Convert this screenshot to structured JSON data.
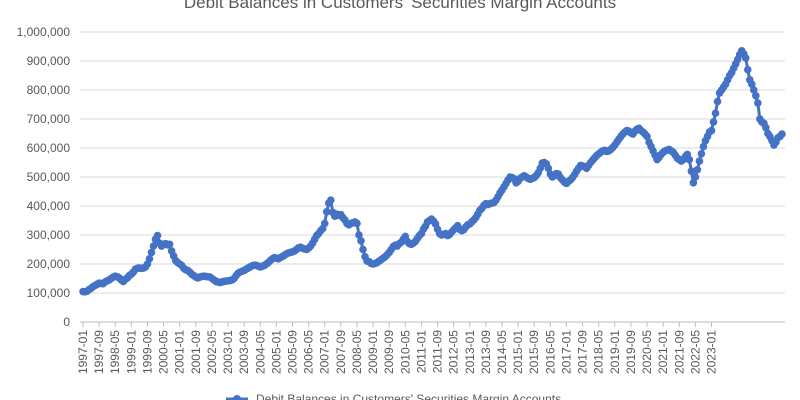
{
  "chart_data": {
    "type": "line",
    "title": "Debit Balances in Customers' Securities Margin Accounts",
    "xlabel": "",
    "ylabel": "",
    "ylim": [
      0,
      1000000
    ],
    "y_ticks": [
      0,
      100000,
      200000,
      300000,
      400000,
      500000,
      600000,
      700000,
      800000,
      900000,
      1000000
    ],
    "y_tick_labels": [
      "0",
      "100,000",
      "200,000",
      "300,000",
      "400,000",
      "500,000",
      "600,000",
      "700,000",
      "800,000",
      "900,000",
      "1,000,000"
    ],
    "x_tick_labels": [
      "1997-01",
      "1997-09",
      "1998-05",
      "1999-01",
      "1999-09",
      "2000-05",
      "2001-01",
      "2001-09",
      "2002-05",
      "2003-01",
      "2003-09",
      "2004-05",
      "2005-01",
      "2005-09",
      "2006-05",
      "2007-01",
      "2007-09",
      "2008-05",
      "2009-01",
      "2009-09",
      "2010-05",
      "2011-01",
      "2011-09",
      "2012-05",
      "2013-01",
      "2013-09",
      "2014-05",
      "2015-01",
      "2015-09",
      "2016-05",
      "2017-01",
      "2017-09",
      "2018-05",
      "2019-01",
      "2019-09",
      "2020-05",
      "2021-01",
      "2021-09",
      "2022-05",
      "2023-01"
    ],
    "grid": "horizontal",
    "legend_position": "bottom",
    "colors": {
      "series": "#4472C4",
      "grid": "#D9D9D9",
      "axis": "#BFBFBF",
      "text": "#595959"
    },
    "series": [
      {
        "name": "Debit Balances in Customers' Securities Margin Accounts",
        "start": "1997-01",
        "frequency": "monthly",
        "values": [
          105000,
          104000,
          106000,
          112000,
          116000,
          122000,
          126000,
          130000,
          134000,
          133000,
          132000,
          138000,
          142000,
          145000,
          150000,
          155000,
          158000,
          156000,
          152000,
          145000,
          140000,
          147000,
          152000,
          160000,
          165000,
          172000,
          182000,
          185000,
          186000,
          185000,
          186000,
          190000,
          200000,
          218000,
          240000,
          262000,
          285000,
          298000,
          272000,
          262000,
          268000,
          270000,
          266000,
          268000,
          245000,
          228000,
          212000,
          205000,
          200000,
          195000,
          185000,
          180000,
          178000,
          172000,
          165000,
          160000,
          155000,
          152000,
          155000,
          157000,
          158000,
          157000,
          156000,
          155000,
          150000,
          145000,
          140000,
          138000,
          136000,
          138000,
          140000,
          141000,
          142000,
          143000,
          145000,
          150000,
          160000,
          168000,
          172000,
          175000,
          178000,
          182000,
          186000,
          190000,
          194000,
          196000,
          195000,
          193000,
          190000,
          192000,
          195000,
          200000,
          205000,
          212000,
          218000,
          222000,
          220000,
          218000,
          222000,
          226000,
          230000,
          235000,
          238000,
          240000,
          242000,
          245000,
          250000,
          256000,
          258000,
          254000,
          252000,
          250000,
          255000,
          262000,
          272000,
          285000,
          298000,
          305000,
          315000,
          322000,
          340000,
          380000,
          410000,
          420000,
          378000,
          365000,
          372000,
          368000,
          370000,
          360000,
          352000,
          340000,
          335000,
          340000,
          342000,
          345000,
          340000,
          300000,
          280000,
          250000,
          225000,
          210000,
          208000,
          202000,
          200000,
          202000,
          205000,
          210000,
          215000,
          220000,
          225000,
          232000,
          240000,
          250000,
          260000,
          265000,
          262000,
          270000,
          275000,
          285000,
          295000,
          278000,
          270000,
          268000,
          272000,
          278000,
          288000,
          298000,
          305000,
          320000,
          330000,
          345000,
          350000,
          355000,
          348000,
          338000,
          320000,
          305000,
          300000,
          302000,
          305000,
          298000,
          302000,
          310000,
          318000,
          325000,
          332000,
          320000,
          315000,
          318000,
          328000,
          335000,
          338000,
          345000,
          352000,
          360000,
          372000,
          385000,
          392000,
          402000,
          408000,
          405000,
          408000,
          410000,
          412000,
          420000,
          432000,
          445000,
          455000,
          466000,
          478000,
          490000,
          500000,
          498000,
          494000,
          480000,
          485000,
          495000,
          500000,
          504000,
          500000,
          495000,
          492000,
          495000,
          498000,
          505000,
          515000,
          530000,
          548000,
          550000,
          545000,
          530000,
          510000,
          500000,
          505000,
          512000,
          510000,
          498000,
          490000,
          482000,
          478000,
          485000,
          490000,
          498000,
          508000,
          520000,
          530000,
          540000,
          538000,
          535000,
          530000,
          540000,
          550000,
          558000,
          566000,
          574000,
          580000,
          585000,
          590000,
          592000,
          588000,
          590000,
          595000,
          602000,
          610000,
          620000,
          630000,
          640000,
          648000,
          655000,
          660000,
          658000,
          652000,
          648000,
          658000,
          665000,
          668000,
          660000,
          655000,
          648000,
          640000,
          620000,
          605000,
          590000,
          575000,
          560000,
          568000,
          578000,
          585000,
          590000,
          593000,
          595000,
          590000,
          585000,
          575000,
          565000,
          560000,
          555000,
          560000,
          570000,
          578000,
          560000,
          520000,
          480000,
          500000,
          525000,
          555000,
          580000,
          605000,
          625000,
          640000,
          655000,
          660000,
          690000,
          720000,
          760000,
          790000,
          800000,
          810000,
          820000,
          835000,
          850000,
          860000,
          875000,
          890000,
          905000,
          922000,
          935000,
          925000,
          910000,
          870000,
          835000,
          820000,
          800000,
          780000,
          755000,
          700000,
          690000,
          685000,
          670000,
          650000,
          640000,
          625000,
          610000,
          620000,
          635000,
          640000,
          648000
        ]
      }
    ]
  }
}
